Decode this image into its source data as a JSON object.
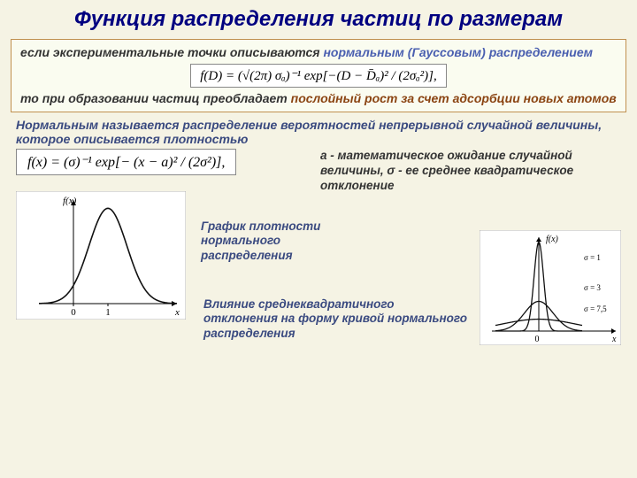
{
  "title": "Функция распределения частиц по размерам",
  "box": {
    "line1_prefix": "если экспериментальные точки описываются ",
    "line1_highlight": "нормальным (Гауссовым) распределением",
    "formula1": "f(D) = (√(2π) σₐ)⁻¹ exp[−(D − D̄ₐ)² / (2σₐ²)],",
    "line2_prefix": "то при образовании частиц преобладает ",
    "line2_highlight": "послойный рост за счет адсорбции новых атомов"
  },
  "definition": "Нормальным называется распределение вероятностей непрерывной случайной величины, которое описывается плотностью",
  "formula2": "f(x) = (σ)⁻¹ exp[− (x − a)² / (2σ²)],",
  "params": "a - математическое ожидание случайной величины, σ - ее среднее квадратическое отклонение",
  "caption1": "График плотности нормального распределения",
  "caption2": "Влияние среднеквадратичного отклонения на форму кривой нормального распределения",
  "chart1": {
    "type": "line",
    "xlabel": "x",
    "ylabel": "f(x)",
    "xlim": [
      -1.0,
      3.0
    ],
    "ylim": [
      0,
      1.1
    ],
    "xticks": [
      0,
      1
    ],
    "mean": 1.0,
    "sigma": 0.55,
    "stroke": "#111111",
    "stroke_width": 1.6,
    "axis_color": "#000000",
    "bg": "#ffffff"
  },
  "chart2": {
    "type": "line",
    "xlabel": "x",
    "ylabel": "f(x)",
    "xlim": [
      -3,
      3
    ],
    "ylim": [
      0,
      1.05
    ],
    "xticks": [
      0
    ],
    "curves": [
      {
        "sigma": 1.0,
        "label": "σ = 1",
        "stroke": "#111111"
      },
      {
        "sigma": 3.0,
        "label": "σ = 3",
        "stroke": "#111111"
      },
      {
        "sigma": 7.5,
        "label": "σ = 7,5",
        "stroke": "#111111"
      }
    ],
    "stroke_width": 1.3,
    "axis_color": "#000000",
    "bg": "#ffffff",
    "label_font_size": 9
  },
  "colors": {
    "page_bg": "#f5f3e4",
    "box_bg": "#fafcf0",
    "box_border": "#c09050",
    "title_color": "#000080",
    "blue_text": "#3a4a80",
    "brown_text": "#8b4513"
  }
}
